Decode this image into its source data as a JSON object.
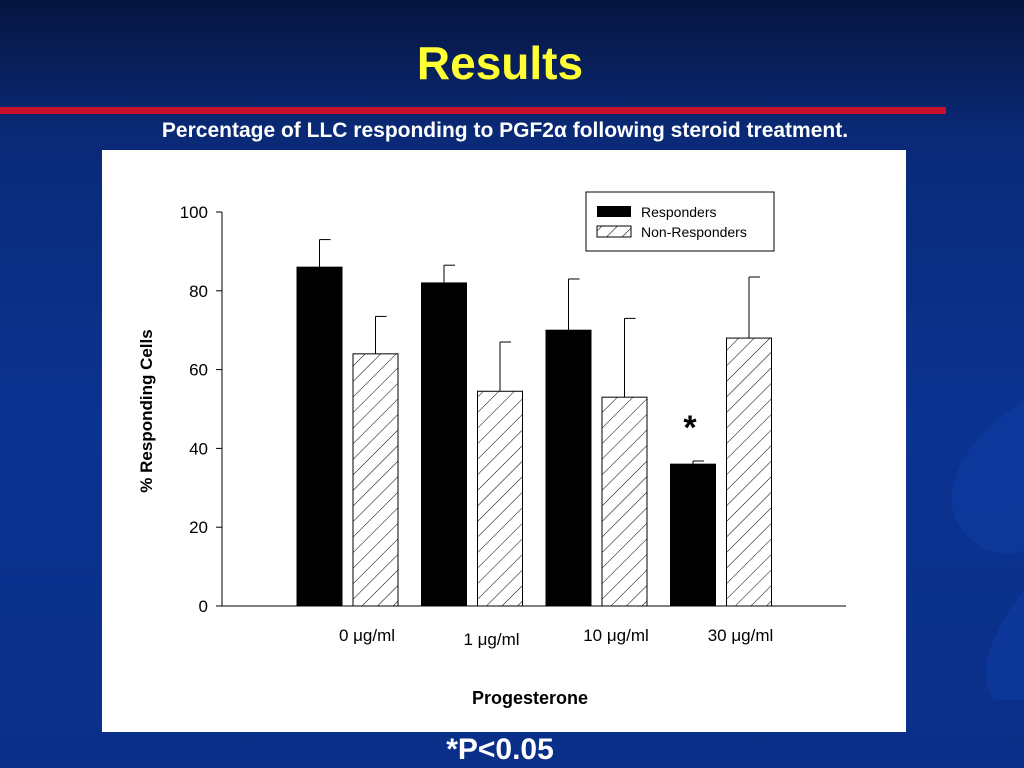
{
  "slide": {
    "title": "Results",
    "subtitle": "Percentage of LLC responding to PGF2α following steroid treatment.",
    "footnote": "*P<0.05"
  },
  "colors": {
    "background": "#0b3391",
    "title": "#ffff33",
    "rule": "#c8102e",
    "responders": "#000000",
    "non_responders": "#ffffff"
  },
  "chart_data": {
    "type": "bar",
    "categories": [
      "0 μg/ml",
      "1 μg/ml",
      "10 μg/ml",
      "30 μg/ml"
    ],
    "series": [
      {
        "name": "Responders",
        "fill": "solid-black",
        "values": [
          86,
          82,
          70,
          36
        ],
        "errors": [
          7,
          4.5,
          13,
          0.8
        ]
      },
      {
        "name": "Non-Responders",
        "fill": "diagonal-hatch",
        "values": [
          64,
          54.5,
          53,
          68
        ],
        "errors": [
          9.5,
          12.5,
          20,
          15.5
        ]
      }
    ],
    "xlabel": "Progesterone",
    "ylabel": "% Responding Cells",
    "ylim": [
      0,
      100
    ],
    "yticks": [
      "0",
      "20",
      "40",
      "60",
      "80",
      "100"
    ],
    "legend": "top-right",
    "annotation": {
      "text": "*",
      "category": "30 μg/ml",
      "series": "Responders"
    }
  }
}
